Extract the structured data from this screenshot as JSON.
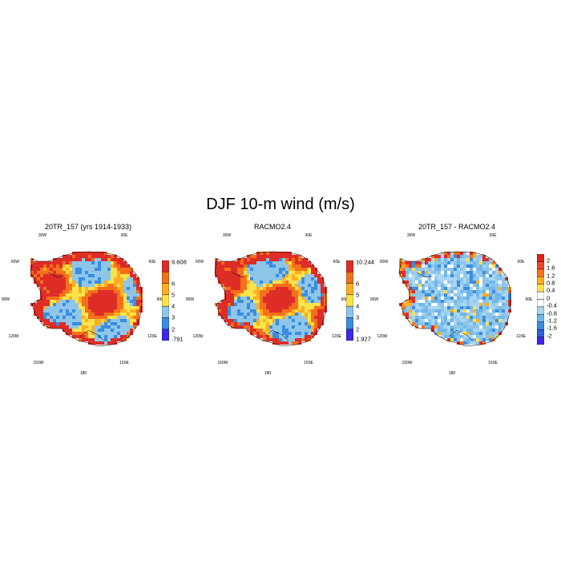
{
  "figure_title": "DJF 10-m wind (m/s)",
  "panels": [
    {
      "title": "20TR_157 (yrs 1914-1933)",
      "colorbar": {
        "ticks": [
          "9.608",
          "6",
          "5",
          "4",
          "3",
          "2",
          ".791"
        ],
        "colors": [
          "#de2d26",
          "#f4701b",
          "#fdae21",
          "#fde34a",
          "#8ec6ea",
          "#3a8de0",
          "#3c28e8"
        ]
      },
      "palette": [
        "#de2d26",
        "#f4701b",
        "#fdae21",
        "#fde34a",
        "#8ec6ea",
        "#3a8de0"
      ],
      "weights": [
        0.4,
        0.2,
        0.14,
        0.14,
        0.1,
        0.02
      ]
    },
    {
      "title": "RACMO2.4",
      "colorbar": {
        "ticks": [
          "10.244",
          "6",
          "5",
          "4",
          "3",
          "2",
          "1.927"
        ],
        "colors": [
          "#de2d26",
          "#f4701b",
          "#fdae21",
          "#fde34a",
          "#8ec6ea",
          "#3a8de0",
          "#3c28e8"
        ]
      },
      "palette": [
        "#de2d26",
        "#f4701b",
        "#fdae21",
        "#fde34a",
        "#8ec6ea",
        "#3a8de0"
      ],
      "weights": [
        0.38,
        0.26,
        0.12,
        0.12,
        0.1,
        0.02
      ]
    },
    {
      "title": "20TR_157 - RACMO2.4",
      "colorbar": {
        "ticks": [
          "2",
          "1.6",
          "1.2",
          "0.8",
          "0.4",
          "0",
          "-0.4",
          "-0.8",
          "-1.2",
          "-1.6",
          "-2"
        ],
        "colors": [
          "#e0241c",
          "#f5452a",
          "#f7721d",
          "#fdae21",
          "#fde34a",
          "#ffffff",
          "#ffffff",
          "#a9d6f2",
          "#6fb6ea",
          "#3a8de0",
          "#2e5fdc",
          "#3c28e8"
        ]
      },
      "palette": [
        "#8ec6ea",
        "#a9d6f2",
        "#6fb6ea",
        "#3a8de0",
        "#ffffff",
        "#fde34a",
        "#fdae21"
      ],
      "weights": [
        0.34,
        0.26,
        0.18,
        0.08,
        0.08,
        0.04,
        0.02
      ]
    }
  ],
  "map_labels": {
    "lon_30w": "30W",
    "lon_30e": "30E",
    "lon_60w": "60W",
    "lon_60e": "60E",
    "lon_90w": "90W",
    "lon_90e": "90E",
    "lon_120w": "120W",
    "lon_120e": "120E",
    "lon_150w": "150W",
    "lon_150e": "150E",
    "lon_180": "180"
  }
}
